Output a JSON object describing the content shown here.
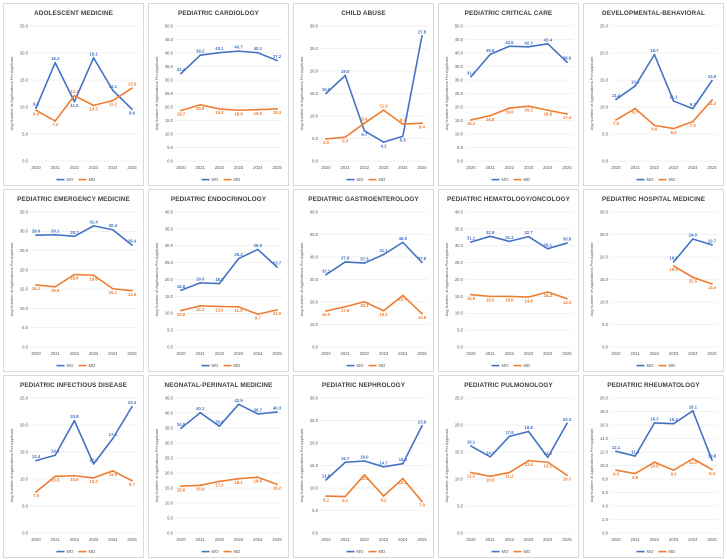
{
  "colors": {
    "mo": "#4472c4",
    "md": "#ed7d31",
    "grid": "#e6e6e6",
    "text": "#595959"
  },
  "common": {
    "x": [
      "2020",
      "2021",
      "2022",
      "2023",
      "2024",
      "2025"
    ],
    "ylabel": "Avg Number of Applications Per Applicant",
    "legend": [
      "MO",
      "MD"
    ]
  },
  "chart_data": [
    {
      "type": "line",
      "title": "ADOLESCENT MEDICINE",
      "ylim": [
        0,
        25
      ],
      "yticks": [
        "0.0",
        "5.0",
        "10.0",
        "15.0",
        "20.0",
        "25.0"
      ],
      "legend_position": "bottom",
      "series": [
        {
          "name": "MO",
          "values": [
            9.8,
            18.2,
            11.0,
            19.1,
            13.1,
            9.6
          ]
        },
        {
          "name": "MD",
          "values": [
            9.4,
            7.4,
            12.1,
            10.3,
            11.2,
            13.5
          ]
        }
      ]
    },
    {
      "type": "line",
      "title": "PEDIATRIC CARDIOLOGY",
      "ylim": [
        0,
        50
      ],
      "yticks": [
        "0.0",
        "5.0",
        "10.0",
        "15.0",
        "20.0",
        "25.0",
        "30.0",
        "35.0",
        "40.0",
        "45.0",
        "50.0"
      ],
      "legend_position": "bottom",
      "series": [
        {
          "name": "MO",
          "values": [
            32.4,
            39.2,
            40.1,
            40.7,
            40.1,
            37.2
          ]
        },
        {
          "name": "MD",
          "values": [
            18.7,
            20.8,
            19.3,
            18.8,
            19.0,
            19.3
          ]
        }
      ]
    },
    {
      "type": "line",
      "title": "CHILD ABUSE",
      "ylim": [
        0,
        30
      ],
      "yticks": [
        "0.0",
        "5.0",
        "10.0",
        "15.0",
        "20.0",
        "25.0",
        "30.0"
      ],
      "legend_position": "bottom",
      "series": [
        {
          "name": "MO",
          "values": [
            15.0,
            19.0,
            6.7,
            4.2,
            5.5,
            27.8
          ]
        },
        {
          "name": "MD",
          "values": [
            4.9,
            5.3,
            8.4,
            11.3,
            8.2,
            8.4
          ]
        }
      ]
    },
    {
      "type": "line",
      "title": "PEDIATRIC CRITICAL CARE",
      "ylim": [
        0,
        50
      ],
      "yticks": [
        "0.0",
        "5.0",
        "10.0",
        "15.0",
        "20.0",
        "25.0",
        "30.0",
        "35.0",
        "40.0",
        "45.0",
        "50.0"
      ],
      "legend_position": "bottom",
      "series": [
        {
          "name": "MO",
          "values": [
            31.2,
            39.5,
            42.5,
            42.3,
            43.4,
            36.6
          ]
        },
        {
          "name": "MD",
          "values": [
            15.2,
            16.8,
            19.6,
            20.3,
            18.8,
            17.4
          ]
        }
      ]
    },
    {
      "type": "line",
      "title": "DEVELOPMENTAL-BEHAVIORAL",
      "ylim": [
        0,
        25
      ],
      "yticks": [
        "0.0",
        "5.0",
        "10.0",
        "15.0",
        "20.0",
        "25.0"
      ],
      "legend_position": "bottom",
      "series": [
        {
          "name": "MO",
          "values": [
            11.4,
            13.9,
            19.7,
            11.1,
            9.7,
            14.9
          ]
        },
        {
          "name": "MD",
          "values": [
            7.6,
            9.7,
            6.6,
            6.0,
            7.3,
            11.3
          ]
        }
      ]
    },
    {
      "type": "line",
      "title": "PEDIATRIC EMERGENCY MEDICINE",
      "ylim": [
        0,
        35
      ],
      "yticks": [
        "0.0",
        "5.0",
        "10.0",
        "15.0",
        "20.0",
        "25.0",
        "30.0",
        "35.0"
      ],
      "legend_position": "bottom",
      "series": [
        {
          "name": "MO",
          "values": [
            29.0,
            29.1,
            28.7,
            31.4,
            30.4,
            26.4
          ]
        },
        {
          "name": "MD",
          "values": [
            16.1,
            15.6,
            18.8,
            18.6,
            15.1,
            14.6
          ]
        }
      ]
    },
    {
      "type": "line",
      "title": "PEDIATRIC ENDOCRINOLOGY",
      "ylim": [
        0,
        40
      ],
      "yticks": [
        "0.0",
        "5.0",
        "10.0",
        "15.0",
        "20.0",
        "25.0",
        "30.0",
        "35.0",
        "40.0"
      ],
      "legend_position": "bottom",
      "series": [
        {
          "name": "MO",
          "values": [
            16.8,
            19.0,
            18.8,
            26.2,
            28.9,
            23.7
          ]
        },
        {
          "name": "MD",
          "values": [
            10.8,
            12.2,
            12.0,
            11.9,
            9.7,
            11.0
          ]
        }
      ]
    },
    {
      "type": "line",
      "title": "PEDIATRIC GASTROENTEROLOGY",
      "ylim": [
        0,
        60
      ],
      "yticks": [
        "0.0",
        "10.0",
        "20.0",
        "30.0",
        "40.0",
        "50.0",
        "60.0"
      ],
      "legend_position": "bottom",
      "series": [
        {
          "name": "MO",
          "values": [
            32.1,
            37.8,
            37.3,
            41.1,
            46.5,
            37.6
          ]
        },
        {
          "name": "MD",
          "values": [
            16.0,
            17.9,
            20.1,
            16.1,
            22.9,
            14.8
          ]
        }
      ]
    },
    {
      "type": "line",
      "title": "PEDIATRIC HEMATOLOGY/ONCOLOGY",
      "ylim": [
        0,
        40
      ],
      "yticks": [
        "0.0",
        "5.0",
        "10.0",
        "15.0",
        "20.0",
        "25.0",
        "30.0",
        "35.0",
        "40.0"
      ],
      "legend_position": "bottom",
      "series": [
        {
          "name": "MO",
          "values": [
            31.1,
            32.8,
            31.3,
            32.7,
            29.1,
            30.8
          ]
        },
        {
          "name": "MD",
          "values": [
            15.5,
            15.0,
            15.0,
            14.8,
            16.3,
            14.3
          ]
        }
      ]
    },
    {
      "type": "line",
      "title": "PEDIATRIC HOSPITAL MEDICINE",
      "ylim": [
        0,
        30
      ],
      "yticks": [
        "0.0",
        "5.0",
        "10.0",
        "15.0",
        "20.0",
        "25.0",
        "30.0"
      ],
      "legend_position": "bottom",
      "series": [
        {
          "name": "MO",
          "values": [
            null,
            null,
            null,
            18.9,
            24.0,
            22.7
          ]
        },
        {
          "name": "MD",
          "values": [
            null,
            null,
            null,
            18.0,
            15.5,
            14.0
          ]
        }
      ]
    },
    {
      "type": "line",
      "title": "PEDIATRIC INFECTIOUS DISEASE",
      "ylim": [
        0,
        25
      ],
      "yticks": [
        "0.0",
        "5.0",
        "10.0",
        "15.0",
        "20.0",
        "25.0"
      ],
      "legend_position": "bottom",
      "series": [
        {
          "name": "MO",
          "values": [
            13.4,
            14.4,
            20.8,
            12.8,
            17.5,
            23.4
          ]
        },
        {
          "name": "MD",
          "values": [
            7.6,
            10.5,
            10.6,
            10.2,
            11.5,
            9.7
          ]
        }
      ]
    },
    {
      "type": "line",
      "title": "NEONATAL-PERINATAL MEDICINE",
      "ylim": [
        0,
        45
      ],
      "yticks": [
        "0.0",
        "5.0",
        "10.0",
        "15.0",
        "20.0",
        "25.0",
        "30.0",
        "35.0",
        "40.0",
        "45.0"
      ],
      "legend_position": "bottom",
      "series": [
        {
          "name": "MO",
          "values": [
            34.9,
            40.1,
            35.6,
            42.9,
            39.7,
            40.3
          ]
        },
        {
          "name": "MD",
          "values": [
            15.6,
            15.9,
            17.2,
            18.1,
            18.6,
            16.2
          ]
        }
      ]
    },
    {
      "type": "line",
      "title": "PEDIATRIC NEPHROLOGY",
      "ylim": [
        0,
        30
      ],
      "yticks": [
        "0.0",
        "5.0",
        "10.0",
        "15.0",
        "20.0",
        "25.0",
        "30.0"
      ],
      "legend_position": "bottom",
      "series": [
        {
          "name": "MO",
          "values": [
            11.8,
            15.7,
            16.0,
            14.7,
            15.4,
            23.8
          ]
        },
        {
          "name": "MD",
          "values": [
            8.2,
            8.1,
            12.9,
            8.2,
            12.1,
            7.0
          ]
        }
      ]
    },
    {
      "type": "line",
      "title": "PEDIATRIC PULMONOLOGY",
      "ylim": [
        0,
        25
      ],
      "yticks": [
        "0.0",
        "5.0",
        "10.0",
        "15.0",
        "20.0",
        "25.0"
      ],
      "legend_position": "bottom",
      "series": [
        {
          "name": "MO",
          "values": [
            16.1,
            14.1,
            17.9,
            18.8,
            14.0,
            20.3
          ]
        },
        {
          "name": "MD",
          "values": [
            11.2,
            10.5,
            11.2,
            13.4,
            13.1,
            10.7
          ]
        }
      ]
    },
    {
      "type": "line",
      "title": "PEDIATRIC RHEUMATOLOGY",
      "ylim": [
        0,
        20
      ],
      "yticks": [
        "0.0",
        "2.0",
        "4.0",
        "6.0",
        "8.0",
        "10.0",
        "12.0",
        "14.0",
        "16.0",
        "18.0",
        "20.0"
      ],
      "legend_position": "bottom",
      "series": [
        {
          "name": "MO",
          "values": [
            12.1,
            11.4,
            16.3,
            16.2,
            18.1,
            10.8
          ]
        },
        {
          "name": "MD",
          "values": [
            9.3,
            8.8,
            10.5,
            9.3,
            11.0,
            9.4
          ]
        }
      ]
    }
  ]
}
